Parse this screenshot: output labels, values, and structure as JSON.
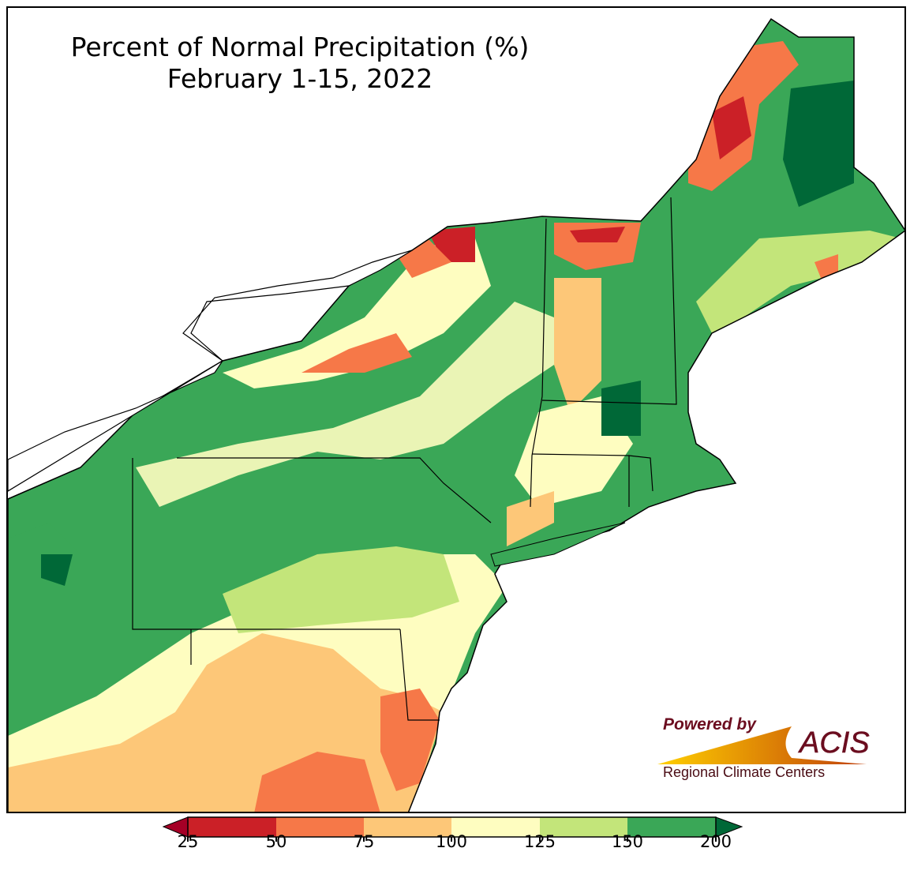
{
  "title": {
    "line1": "Percent of Normal Precipitation (%)",
    "line2": "February 1-15, 2022"
  },
  "legend": {
    "ticks": [
      "25",
      "50",
      "75",
      "100",
      "125",
      "150",
      "200"
    ],
    "colors": [
      "#a50026",
      "#cb2027",
      "#f67848",
      "#fdc778",
      "#fefdc0",
      "#c3e57a",
      "#3aa757",
      "#006837"
    ]
  },
  "logo": {
    "line1": "Powered by",
    "brand": "ACIS",
    "line2": "Regional Climate Centers"
  }
}
